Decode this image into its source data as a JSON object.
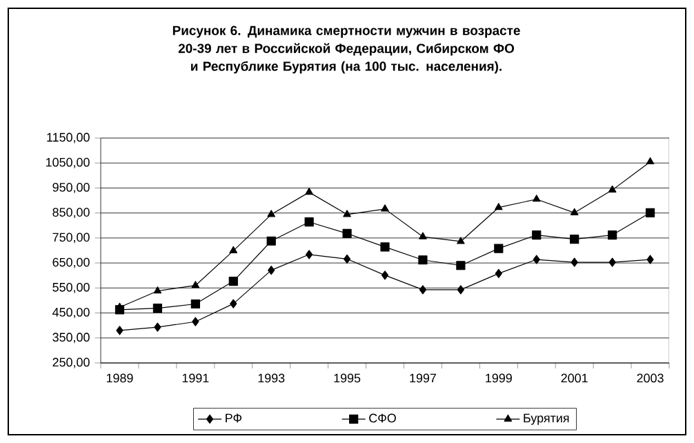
{
  "chart_data": {
    "type": "line",
    "title": "Рисунок 6. Динамика смертности мужчин в возрасте 20-39 лет  в Российской Федерации, Сибирском ФО и Республике Бурятия (на 100 тыс. населения).",
    "categories": [
      "1989",
      null,
      "1991",
      null,
      "1993",
      null,
      "1995",
      null,
      "1997",
      null,
      "1999",
      null,
      "2001",
      null,
      "2003"
    ],
    "series": [
      {
        "name": "РФ",
        "color": "#000000",
        "marker": "diamond",
        "values": [
          380,
          393,
          415,
          487,
          621,
          684,
          666,
          601,
          543,
          543,
          608,
          664,
          653,
          653,
          664
        ]
      },
      {
        "name": "СФО",
        "color": "#000000",
        "marker": "square",
        "values": [
          463,
          469,
          486,
          577,
          738,
          814,
          768,
          714,
          662,
          640,
          708,
          762,
          745,
          762,
          851
        ]
      },
      {
        "name": "Бурятия",
        "color": "#000000",
        "marker": "triangle",
        "values": [
          473,
          538,
          560,
          699,
          844,
          933,
          844,
          866,
          755,
          736,
          872,
          905,
          851,
          942,
          1055
        ]
      }
    ],
    "ylim": [
      250,
      1150
    ],
    "yticks": [
      {
        "value": 250,
        "label": "250,00"
      },
      {
        "value": 350,
        "label": "350,00"
      },
      {
        "value": 450,
        "label": "450,00"
      },
      {
        "value": 550,
        "label": "550,00"
      },
      {
        "value": 650,
        "label": "650,00"
      },
      {
        "value": 750,
        "label": "750,00"
      },
      {
        "value": 850,
        "label": "850,00"
      },
      {
        "value": 950,
        "label": "950,00"
      },
      {
        "value": 1050,
        "label": "1050,00"
      },
      {
        "value": 1150,
        "label": "1150,00"
      }
    ],
    "grid": "y",
    "legend": "bottom",
    "line_style": "solid"
  }
}
